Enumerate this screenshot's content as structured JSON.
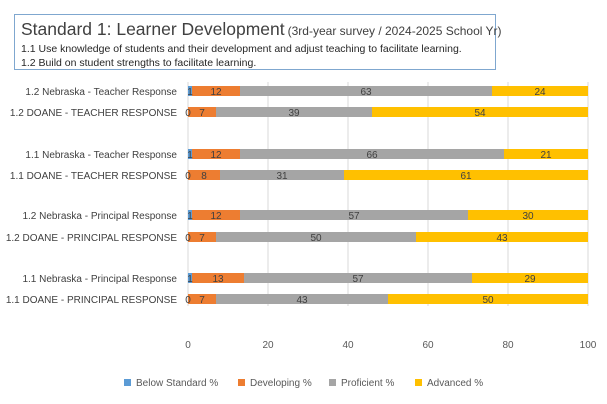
{
  "chart_data": {
    "type": "bar",
    "orientation": "horizontal",
    "stacked": true,
    "title": "Standard 1: Learner Development",
    "subtitle": "(3rd-year survey / 2024-2025 School Yr)",
    "caption_lines": [
      "1.1 Use knowledge of students and their development and adjust teaching to facilitate learning.",
      "1.2 Build on student strengths to facilitate learning."
    ],
    "categories": [
      "1.2 Nebraska - Teacher Response",
      "1.2 DOANE - TEACHER RESPONSE",
      "1.1 Nebraska - Teacher Response",
      "1.1 DOANE - TEACHER RESPONSE",
      "1.2 Nebraska - Principal Response",
      "1.2  DOANE  - PRINCIPAL RESPONSE",
      "1.1 Nebraska - Principal Response",
      "1.1 DOANE  - PRINCIPAL RESPONSE"
    ],
    "series": [
      {
        "name": "Below Standard %",
        "color": "#5b9bd5",
        "values": [
          1,
          0,
          1,
          0,
          1,
          0,
          1,
          0
        ]
      },
      {
        "name": "Developing %",
        "color": "#ed7d31",
        "values": [
          12,
          7,
          12,
          8,
          12,
          7,
          13,
          7
        ]
      },
      {
        "name": "Proficient %",
        "color": "#a5a5a5",
        "values": [
          63,
          39,
          66,
          31,
          57,
          50,
          57,
          43
        ]
      },
      {
        "name": "Advanced %",
        "color": "#ffc000",
        "values": [
          24,
          54,
          21,
          61,
          30,
          43,
          29,
          50
        ]
      }
    ],
    "xlim": [
      0,
      100
    ],
    "x_ticks": [
      "0",
      "20",
      "40",
      "60",
      "80",
      "100"
    ],
    "grid": "vertical",
    "legend": "bottom"
  }
}
